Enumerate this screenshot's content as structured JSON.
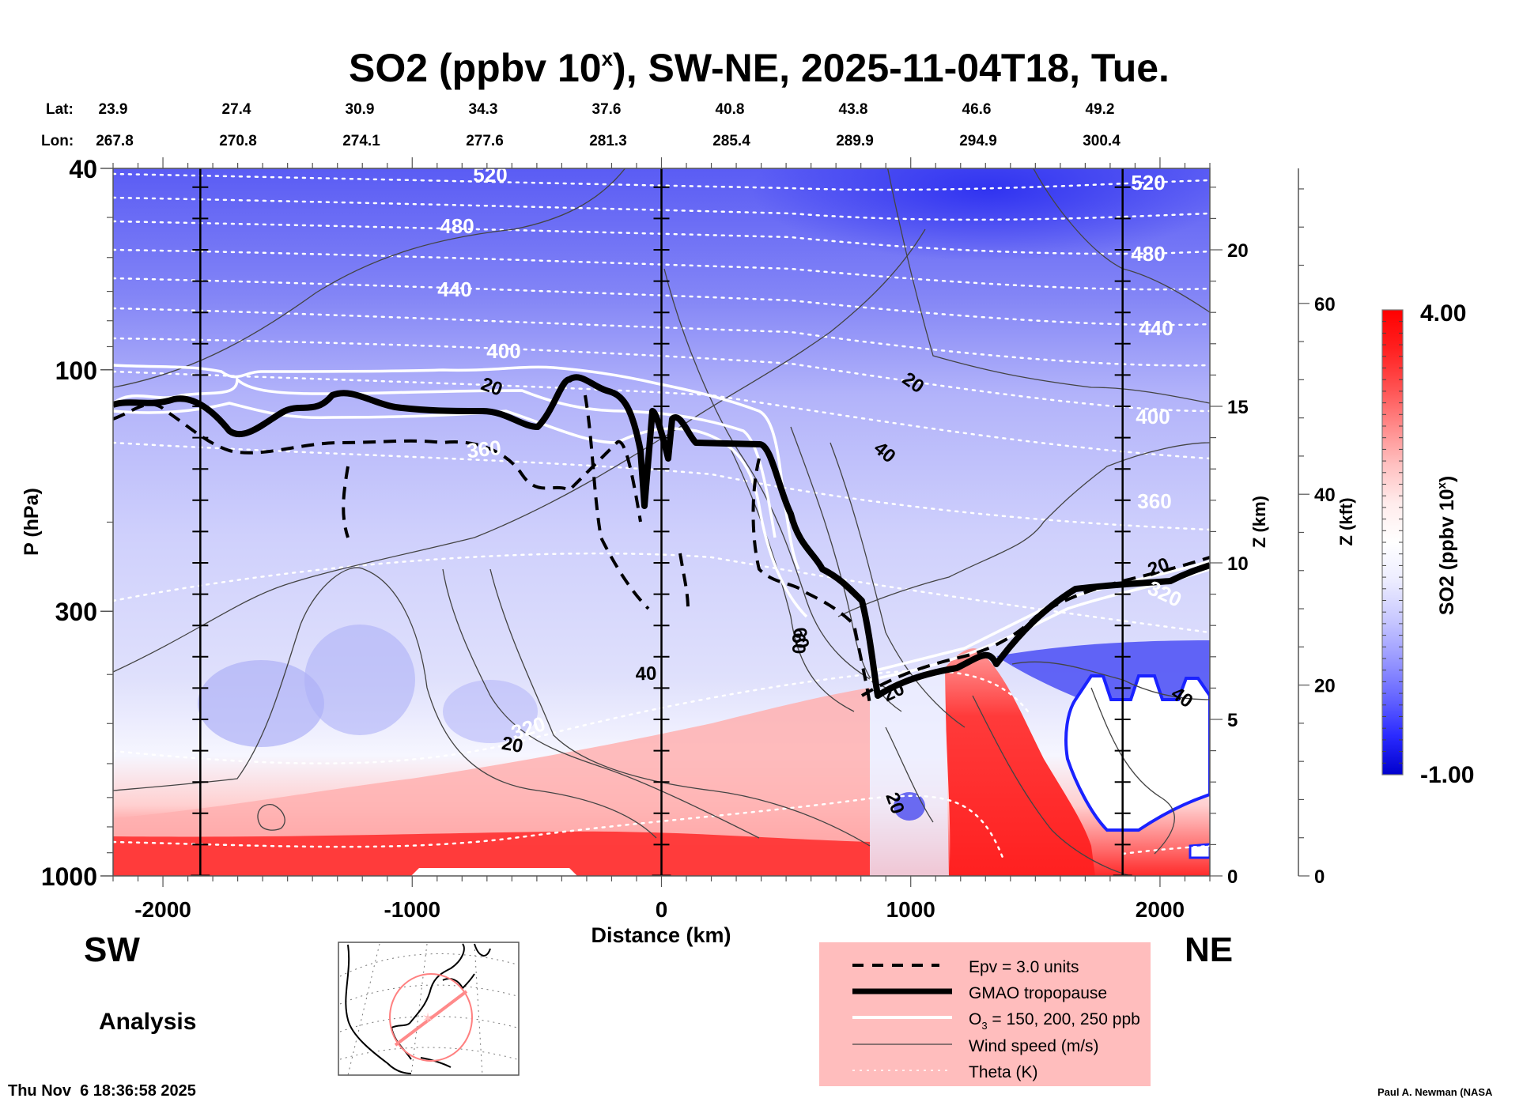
{
  "chart_data": {
    "type": "heatmap",
    "title": "SO2 (ppbv 10^x), SW-NE, 2025-11-04T18, Tue.",
    "title_parts": {
      "main": "SO2 (ppbv 10",
      "sup": "x",
      "rest": "), SW-NE, 2025-11-04T18, Tue."
    },
    "xlabel": "Distance (km)",
    "ylabel": "P (hPa)",
    "xlim": [
      -2200,
      2200
    ],
    "ylim": [
      1000,
      40
    ],
    "yscale": "log",
    "x_ticks": [
      -2000,
      -1000,
      0,
      1000,
      2000
    ],
    "x_tick_labels": [
      "-2000",
      "-1000",
      "0",
      "1000",
      "2000"
    ],
    "y_ticks": [
      40,
      100,
      300,
      1000
    ],
    "y_tick_labels": [
      "40",
      "100",
      "300",
      "1000"
    ],
    "z_km_axis": {
      "label": "Z (km)",
      "ticks": [
        0,
        5,
        10,
        15,
        20
      ],
      "tick_labels": [
        "0",
        "5",
        "10",
        "15",
        "20"
      ]
    },
    "z_kft_axis": {
      "label": "Z (kft)",
      "ticks": [
        0,
        20,
        40,
        60
      ],
      "tick_labels": [
        "0",
        "20",
        "40",
        "60"
      ]
    },
    "lat_label": "Lat:",
    "lon_label": "Lon:",
    "lat_values": [
      "23.9",
      "27.4",
      "30.9",
      "34.3",
      "37.6",
      "40.8",
      "43.8",
      "46.6",
      "49.2"
    ],
    "lon_values": [
      "267.8",
      "270.8",
      "274.1",
      "277.6",
      "281.3",
      "285.4",
      "289.9",
      "294.9",
      "300.4"
    ],
    "vertical_markers_km": [
      -1850,
      0,
      1850
    ],
    "colorbar": {
      "label": "SO2 (ppbv 10^x)",
      "label_main": "SO2 (ppbv 10",
      "label_sup": "x",
      "label_rest": ")",
      "min": -1.0,
      "max": 4.0,
      "min_label": "-1.00",
      "max_label": "4.00",
      "colors": [
        "#0000cc",
        "#2a2aff",
        "#6666ff",
        "#9a9aff",
        "#c8c8ff",
        "#ececff",
        "#ffffff",
        "#ffecec",
        "#ffc0c0",
        "#ff8a8a",
        "#ff5050",
        "#ff2020",
        "#ff0000"
      ]
    },
    "theta_contours_K": [
      {
        "value": 520,
        "label": "520"
      },
      {
        "value": 480,
        "label": "480"
      },
      {
        "value": 440,
        "label": "440"
      },
      {
        "value": 400,
        "label": "400"
      },
      {
        "value": 360,
        "label": "360"
      },
      {
        "value": 320,
        "label": "320"
      },
      {
        "value": 280,
        "label": "280"
      }
    ],
    "wind_contour_labels_ms": [
      "20",
      "20",
      "40",
      "40",
      "60",
      "20",
      "20",
      "20",
      "40",
      "20"
    ],
    "annotations": {
      "left_direction": "SW",
      "right_direction": "NE",
      "product": "Analysis",
      "timestamp": "Thu Nov  6 18:36:58 2025",
      "credit": "Paul A. Newman (NASA"
    },
    "legend": [
      {
        "style": "dashed-thick",
        "label": "Epv = 3.0 units"
      },
      {
        "style": "solid-heavy",
        "label": "GMAO tropopause"
      },
      {
        "style": "solid-white",
        "label_main": "O",
        "label_sub": "3",
        "label_rest": " = 150, 200, 250 ppb",
        "label": "O3 = 150, 200, 250 ppb"
      },
      {
        "style": "solid-thin",
        "label": "Wind speed (m/s)"
      },
      {
        "style": "dotted-white",
        "label": "Theta (K)"
      }
    ],
    "legend_background": "#ffbdbd",
    "inset_map": {
      "description": "North America orthographic map with cross-section line SW-NE and range circle",
      "line_color": "#ff8080"
    }
  }
}
